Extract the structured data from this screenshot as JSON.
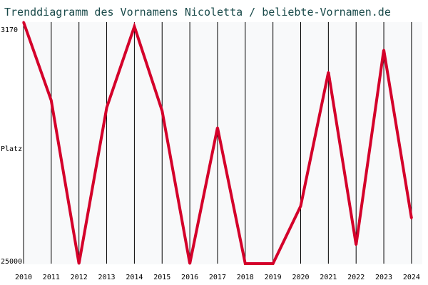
{
  "chart_data": {
    "type": "line",
    "title": "Trenddiagramm des Vornamens Nicoletta / beliebte-Vornamen.de",
    "ylabel": "Platz",
    "y_top_label": "3170",
    "y_bottom_label": "25000",
    "ylim": [
      3170,
      25000
    ],
    "y_inverted": true,
    "grid": "vertical",
    "colors": {
      "line": "#d4002a",
      "grid": "#000000",
      "background": "#f8f9fa"
    },
    "x": [
      "2010",
      "2011",
      "2012",
      "2013",
      "2014",
      "2015",
      "2016",
      "2017",
      "2018",
      "2019",
      "2020",
      "2021",
      "2022",
      "2023",
      "2024"
    ],
    "series": [
      {
        "name": "",
        "values": [
          3170,
          10250,
          25000,
          10900,
          3570,
          11200,
          25000,
          12700,
          25000,
          25000,
          19800,
          7700,
          23300,
          5680,
          20900
        ]
      }
    ]
  }
}
